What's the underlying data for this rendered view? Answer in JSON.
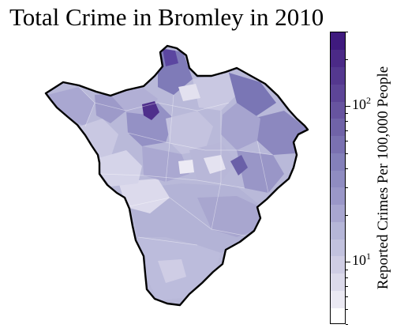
{
  "title": "Total Crime in Bromley in 2010",
  "colorbar": {
    "label": "Reported Crimes Per 100,000 People",
    "scale": "log",
    "range": [
      4,
      300
    ],
    "major_ticks": [
      {
        "value": 10,
        "base": "10",
        "exp": "1"
      },
      {
        "value": 100,
        "base": "10",
        "exp": "2"
      }
    ],
    "colors": [
      "#ffffff",
      "#ebe9f3",
      "#dcdaeb",
      "#cfcde4",
      "#c2c2de",
      "#b5b6d8",
      "#a8a6d0",
      "#9a97c8",
      "#8f8cc1",
      "#8480ba",
      "#7a71b1",
      "#7063a8",
      "#67549f",
      "#5d4597",
      "#54388f",
      "#4b2a87",
      "#3f1a7e"
    ]
  },
  "map": {
    "region": "Bromley",
    "fill_levels": [
      {
        "name": "south-low",
        "color": "#b9b9d9"
      },
      {
        "name": "west-pale",
        "color": "#d4d3e8"
      },
      {
        "name": "central-mid",
        "color": "#a9a7d1"
      },
      {
        "name": "north-mid",
        "color": "#9390c4"
      },
      {
        "name": "east-mid",
        "color": "#8884bd"
      },
      {
        "name": "hotspot",
        "color": "#4f2f8c"
      },
      {
        "name": "light",
        "color": "#e6e4f1"
      }
    ]
  }
}
